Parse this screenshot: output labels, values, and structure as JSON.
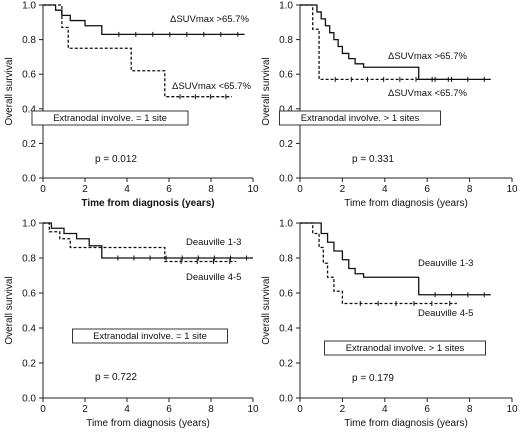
{
  "chart_data": [
    {
      "type": "line",
      "step": true,
      "xlabel": "Time from diagnosis (years)",
      "xlabel_bold": true,
      "ylabel": "Overall survival",
      "xlim": [
        0,
        10
      ],
      "ylim": [
        0,
        1.0
      ],
      "x_ticks": [
        "0",
        "2",
        "4",
        "6",
        "8",
        "10"
      ],
      "y_ticks": [
        "0.0",
        "0.2",
        "0.4",
        "0.6",
        "0.8",
        "1.0"
      ],
      "box_text": "Extranodal involve. = 1 site",
      "p_text": "p = 0.012",
      "series": [
        {
          "name": "ΔSUVmax >65.7%",
          "style": "solid",
          "x": [
            0,
            0.6,
            0.9,
            1.3,
            2.0,
            2.8,
            9.6
          ],
          "y": [
            1.0,
            0.97,
            0.94,
            0.91,
            0.88,
            0.83,
            0.83
          ]
        },
        {
          "name": "ΔSUVmax <65.7%",
          "style": "dashed",
          "x": [
            0,
            0.9,
            1.2,
            4.2,
            5.8,
            9.0
          ],
          "y": [
            1.0,
            0.87,
            0.75,
            0.62,
            0.47,
            0.47
          ]
        }
      ]
    },
    {
      "type": "line",
      "step": true,
      "xlabel": "Time from diagnosis (years)",
      "ylabel": "Overall survival",
      "xlim": [
        0,
        10
      ],
      "ylim": [
        0,
        1.0
      ],
      "x_ticks": [
        "0",
        "2",
        "4",
        "6",
        "8",
        "10"
      ],
      "y_ticks": [
        "0.0",
        "0.2",
        "0.4",
        "0.6",
        "0.8",
        "1.0"
      ],
      "box_text": "Extranodal involve. > 1 sites",
      "p_text": "p = 0.331",
      "series": [
        {
          "name": "ΔSUVmax >65.7%",
          "style": "solid",
          "x": [
            0,
            0.8,
            1.0,
            1.2,
            1.4,
            1.6,
            1.8,
            2.0,
            2.3,
            2.6,
            3.0,
            5.6,
            9.0
          ],
          "y": [
            1.0,
            0.96,
            0.92,
            0.88,
            0.84,
            0.8,
            0.76,
            0.72,
            0.69,
            0.66,
            0.64,
            0.57,
            0.57
          ]
        },
        {
          "name": "ΔSUVmax <65.7%",
          "style": "dashed",
          "x": [
            0,
            0.6,
            0.9,
            7.3
          ],
          "y": [
            1.0,
            0.86,
            0.57,
            0.57
          ]
        }
      ]
    },
    {
      "type": "line",
      "step": true,
      "xlabel": "Time from diagnosis (years)",
      "ylabel": "Overall survival",
      "xlim": [
        0,
        10
      ],
      "ylim": [
        0,
        1.0
      ],
      "x_ticks": [
        "0",
        "2",
        "4",
        "6",
        "8",
        "10"
      ],
      "y_ticks": [
        "0.0",
        "0.2",
        "0.4",
        "0.6",
        "0.8",
        "1.0"
      ],
      "box_text": "Extranodal involve. = 1 site",
      "p_text": "p = 0.722",
      "series": [
        {
          "name": "Deauville 1-3",
          "style": "solid",
          "x": [
            0,
            0.4,
            1.0,
            1.6,
            2.2,
            2.8,
            10
          ],
          "y": [
            1.0,
            0.97,
            0.94,
            0.91,
            0.87,
            0.8,
            0.8
          ]
        },
        {
          "name": "Deauville 4-5",
          "style": "dashed",
          "x": [
            0,
            0.3,
            0.8,
            1.3,
            5.8,
            9.2
          ],
          "y": [
            1.0,
            0.95,
            0.91,
            0.86,
            0.78,
            0.78
          ]
        }
      ]
    },
    {
      "type": "line",
      "step": true,
      "xlabel": "Time from diagnosis (years)",
      "ylabel": "Overall survival",
      "xlim": [
        0,
        10
      ],
      "ylim": [
        0,
        1.0
      ],
      "x_ticks": [
        "0",
        "2",
        "4",
        "6",
        "8",
        "10"
      ],
      "y_ticks": [
        "0.0",
        "0.2",
        "0.4",
        "0.6",
        "0.8",
        "1.0"
      ],
      "box_text": "Extranodal involve. > 1 sites",
      "p_text": "p = 0.179",
      "series": [
        {
          "name": "Deauville 1-3",
          "style": "solid",
          "x": [
            0,
            1.0,
            1.3,
            1.6,
            2.0,
            2.3,
            2.6,
            3.0,
            5.6,
            9.0
          ],
          "y": [
            1.0,
            0.94,
            0.89,
            0.84,
            0.79,
            0.74,
            0.71,
            0.69,
            0.59,
            0.59
          ]
        },
        {
          "name": "Deauville 4-5",
          "style": "dashed",
          "x": [
            0,
            0.6,
            0.9,
            1.1,
            1.3,
            1.6,
            2.0,
            7.4
          ],
          "y": [
            1.0,
            0.94,
            0.86,
            0.77,
            0.69,
            0.61,
            0.54,
            0.54
          ]
        }
      ]
    }
  ]
}
